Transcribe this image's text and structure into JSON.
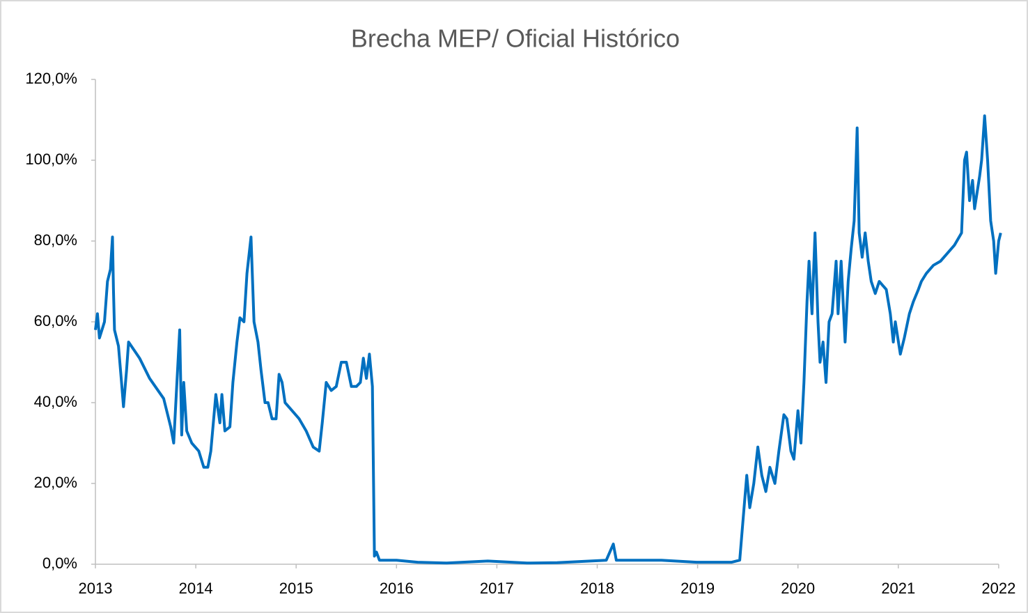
{
  "chart_data": {
    "type": "line",
    "title": "Brecha MEP/ Oficial Histórico",
    "xlim": [
      2013,
      2022.05
    ],
    "xticks": [
      2013,
      2014,
      2015,
      2016,
      2017,
      2018,
      2019,
      2020,
      2021,
      2022
    ],
    "ylim": [
      0,
      120
    ],
    "yticks": [
      {
        "value": 0,
        "label": "0,0%"
      },
      {
        "value": 20,
        "label": "20,0%"
      },
      {
        "value": 40,
        "label": "40,0%"
      },
      {
        "value": 60,
        "label": "60,0%"
      },
      {
        "value": 80,
        "label": "80,0%"
      },
      {
        "value": 100,
        "label": "100,0%"
      },
      {
        "value": 120,
        "label": "120,0%"
      }
    ],
    "grid": false,
    "series": [
      {
        "name": "Brecha MEP/ Oficial",
        "color": "#0070c0",
        "x": [
          2013.0,
          2013.02,
          2013.04,
          2013.09,
          2013.12,
          2013.15,
          2013.17,
          2013.18,
          2013.19,
          2013.23,
          2013.26,
          2013.28,
          2013.31,
          2013.33,
          2013.44,
          2013.54,
          2013.68,
          2013.75,
          2013.78,
          2013.84,
          2013.86,
          2013.88,
          2013.91,
          2013.96,
          2014.03,
          2014.08,
          2014.12,
          2014.15,
          2014.2,
          2014.24,
          2014.26,
          2014.29,
          2014.34,
          2014.37,
          2014.41,
          2014.44,
          2014.48,
          2014.51,
          2014.55,
          2014.58,
          2014.62,
          2014.65,
          2014.69,
          2014.72,
          2014.76,
          2014.8,
          2014.83,
          2014.86,
          2014.89,
          2014.96,
          2015.03,
          2015.1,
          2015.17,
          2015.23,
          2015.26,
          2015.3,
          2015.35,
          2015.4,
          2015.45,
          2015.5,
          2015.55,
          2015.6,
          2015.64,
          2015.67,
          2015.7,
          2015.73,
          2015.76,
          2015.78,
          2015.8,
          2015.83,
          2016.0,
          2016.21,
          2016.5,
          2016.91,
          2017.3,
          2017.6,
          2018.09,
          2018.16,
          2018.19,
          2018.64,
          2018.99,
          2019.34,
          2019.42,
          2019.45,
          2019.49,
          2019.52,
          2019.56,
          2019.6,
          2019.64,
          2019.68,
          2019.72,
          2019.77,
          2019.81,
          2019.86,
          2019.89,
          2019.93,
          2019.96,
          2020.0,
          2020.03,
          2020.06,
          2020.09,
          2020.11,
          2020.14,
          2020.17,
          2020.2,
          2020.22,
          2020.25,
          2020.28,
          2020.31,
          2020.34,
          2020.38,
          2020.4,
          2020.43,
          2020.47,
          2020.5,
          2020.53,
          2020.56,
          2020.59,
          2020.61,
          2020.64,
          2020.67,
          2020.7,
          2020.73,
          2020.77,
          2020.81,
          2020.88,
          2020.92,
          2020.95,
          2020.97,
          2021.02,
          2021.06,
          2021.11,
          2021.15,
          2021.2,
          2021.23,
          2021.28,
          2021.35,
          2021.42,
          2021.49,
          2021.56,
          2021.63,
          2021.66,
          2021.68,
          2021.71,
          2021.74,
          2021.76,
          2021.81,
          2021.83,
          2021.86,
          2021.89,
          2021.92,
          2021.95,
          2021.97,
          2022.0,
          2022.02
        ],
        "values": [
          58,
          62,
          56,
          60,
          70,
          73,
          81,
          68,
          58,
          54,
          45,
          39,
          48,
          55,
          51,
          46,
          41,
          34,
          30,
          58,
          32,
          45,
          33,
          30,
          28,
          24,
          24,
          28,
          42,
          35,
          42,
          33,
          34,
          45,
          55,
          61,
          60,
          72,
          81,
          60,
          55,
          48,
          40,
          40,
          36,
          36,
          47,
          45,
          40,
          38,
          36,
          33,
          29,
          28,
          35,
          45,
          43,
          44,
          50,
          50,
          44,
          44,
          45,
          51,
          46,
          52,
          44,
          2,
          3,
          1,
          1,
          0.5,
          0.3,
          0.8,
          0.3,
          0.4,
          1,
          5,
          1,
          1,
          0.5,
          0.5,
          1,
          10,
          22,
          14,
          20,
          29,
          22,
          18,
          24,
          20,
          28,
          37,
          36,
          28,
          26,
          38,
          30,
          45,
          65,
          75,
          62,
          82,
          60,
          50,
          55,
          45,
          60,
          62,
          75,
          62,
          75,
          55,
          70,
          78,
          85,
          108,
          82,
          76,
          82,
          75,
          70,
          67,
          70,
          68,
          62,
          55,
          60,
          52,
          56,
          62,
          65,
          68,
          70,
          72,
          74,
          75,
          77,
          79,
          82,
          100,
          102,
          90,
          95,
          88,
          96,
          100,
          111,
          100,
          85,
          80,
          72,
          80,
          82
        ]
      }
    ]
  }
}
